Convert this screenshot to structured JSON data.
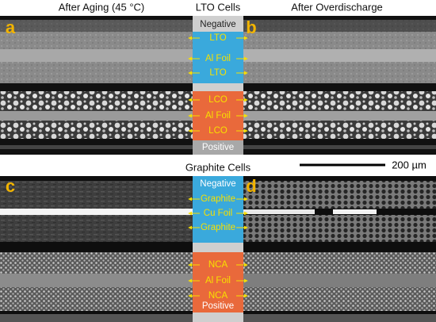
{
  "header": {
    "left": "After Aging (45 °C)",
    "center": "LTO Cells",
    "right": "After Overdischarge"
  },
  "panels": [
    "a",
    "b",
    "c",
    "d"
  ],
  "lto_cell": {
    "labels": [
      "Negative",
      "LTO",
      "Al Foil",
      "LTO",
      "LCO",
      "Al Foil",
      "LCO",
      "Positive"
    ]
  },
  "graphite_cell": {
    "title": "Graphite Cells",
    "labels": [
      "Negative",
      "Graphite",
      "Cu Foil",
      "Graphite",
      "NCA",
      "Al Foil",
      "NCA",
      "Positive"
    ]
  },
  "scale_bar": "200 µm"
}
